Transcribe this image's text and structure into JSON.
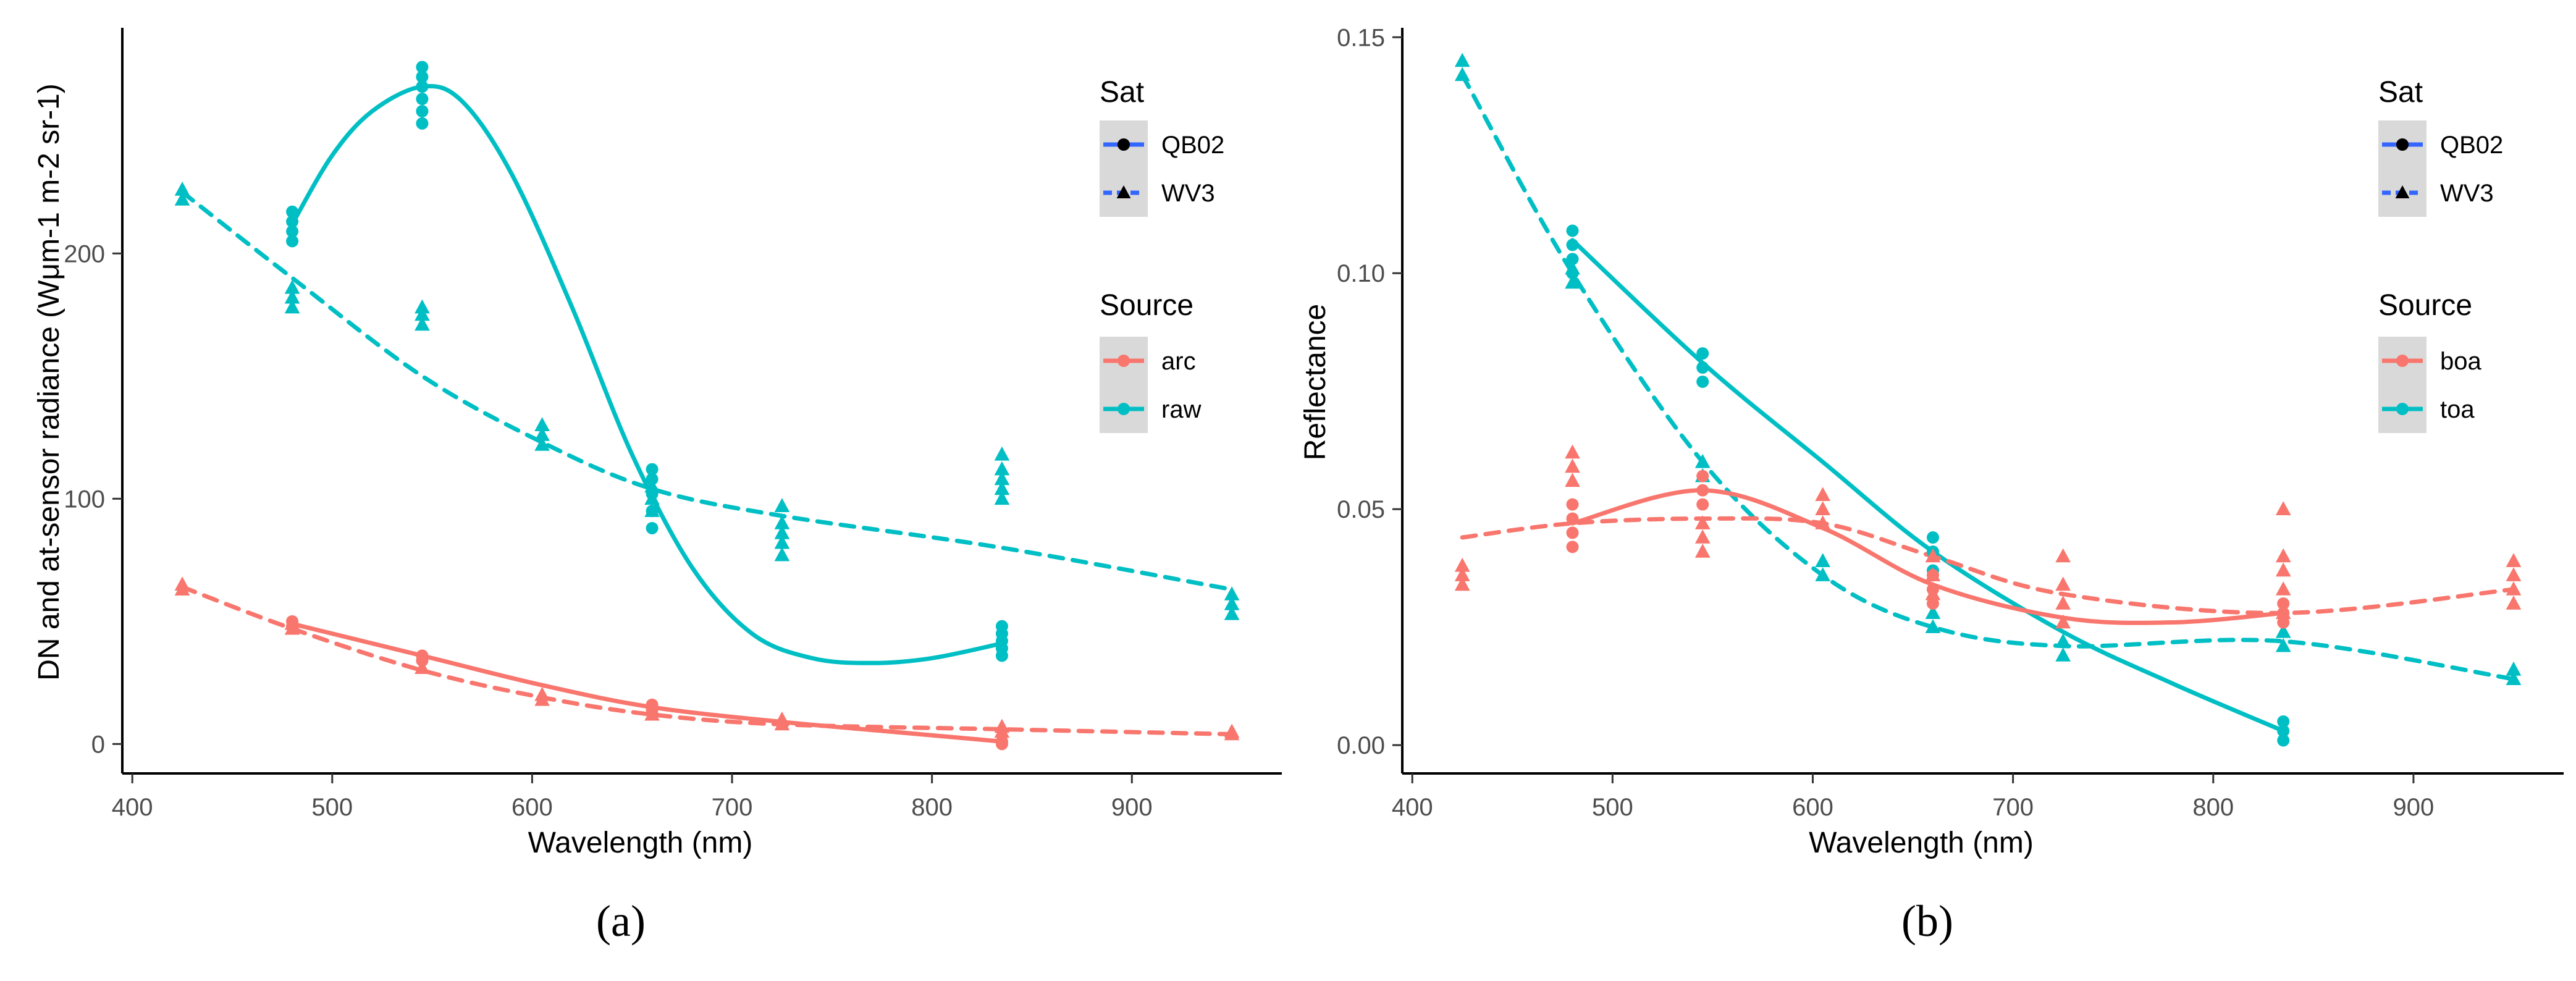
{
  "chart_data": [
    {
      "panel": "a",
      "caption": "(a)",
      "type": "scatter",
      "title": "",
      "xlabel": "Wavelength (nm)",
      "ylabel": "DN and at-sensor radiance (Wμm-1 m-2 sr-1)",
      "xlim": [
        395,
        975
      ],
      "ylim": [
        -12,
        292
      ],
      "xticks": [
        400,
        500,
        600,
        700,
        800,
        900
      ],
      "yticks": [
        0,
        100,
        200
      ],
      "grid": false,
      "legend_position": "right",
      "legend": {
        "sat_title": "Sat",
        "sat_entries": [
          "QB02",
          "WV3"
        ],
        "source_title": "Source",
        "source_entries": [
          "arc",
          "raw"
        ]
      },
      "colors": {
        "arc": "#F8766D",
        "raw": "#00BFC4",
        "legend_line": "#3366FF"
      },
      "points": [
        {
          "sat": "QB02",
          "source": "raw",
          "x": 480,
          "y": [
            205,
            209,
            213,
            217
          ]
        },
        {
          "sat": "QB02",
          "source": "raw",
          "x": 545,
          "y": [
            253,
            258,
            263,
            268,
            272,
            276
          ]
        },
        {
          "sat": "QB02",
          "source": "raw",
          "x": 660,
          "y": [
            88,
            95,
            102,
            108,
            112
          ]
        },
        {
          "sat": "QB02",
          "source": "raw",
          "x": 835,
          "y": [
            36,
            39,
            42,
            45,
            48
          ]
        },
        {
          "sat": "WV3",
          "source": "raw",
          "x": 425,
          "y": [
            222,
            226
          ]
        },
        {
          "sat": "WV3",
          "source": "raw",
          "x": 480,
          "y": [
            178,
            182,
            186
          ]
        },
        {
          "sat": "WV3",
          "source": "raw",
          "x": 545,
          "y": [
            171,
            175,
            178
          ]
        },
        {
          "sat": "WV3",
          "source": "raw",
          "x": 605,
          "y": [
            122,
            126,
            130
          ]
        },
        {
          "sat": "WV3",
          "source": "raw",
          "x": 660,
          "y": [
            95,
            100,
            105
          ]
        },
        {
          "sat": "WV3",
          "source": "raw",
          "x": 725,
          "y": [
            77,
            82,
            86,
            90,
            97
          ]
        },
        {
          "sat": "WV3",
          "source": "raw",
          "x": 835,
          "y": [
            100,
            104,
            108,
            112,
            118
          ]
        },
        {
          "sat": "WV3",
          "source": "raw",
          "x": 950,
          "y": [
            53,
            57,
            61
          ]
        },
        {
          "sat": "QB02",
          "source": "arc",
          "x": 480,
          "y": [
            48,
            50
          ]
        },
        {
          "sat": "QB02",
          "source": "arc",
          "x": 545,
          "y": [
            34,
            36
          ]
        },
        {
          "sat": "QB02",
          "source": "arc",
          "x": 660,
          "y": [
            14,
            16
          ]
        },
        {
          "sat": "QB02",
          "source": "arc",
          "x": 835,
          "y": [
            0,
            1
          ]
        },
        {
          "sat": "WV3",
          "source": "arc",
          "x": 425,
          "y": [
            63,
            65
          ]
        },
        {
          "sat": "WV3",
          "source": "arc",
          "x": 480,
          "y": [
            47,
            49
          ]
        },
        {
          "sat": "WV3",
          "source": "arc",
          "x": 545,
          "y": [
            31
          ]
        },
        {
          "sat": "WV3",
          "source": "arc",
          "x": 605,
          "y": [
            18,
            20
          ]
        },
        {
          "sat": "WV3",
          "source": "arc",
          "x": 660,
          "y": [
            12,
            14
          ]
        },
        {
          "sat": "WV3",
          "source": "arc",
          "x": 725,
          "y": [
            8,
            10
          ]
        },
        {
          "sat": "WV3",
          "source": "arc",
          "x": 835,
          "y": [
            5,
            7
          ]
        },
        {
          "sat": "WV3",
          "source": "arc",
          "x": 950,
          "y": [
            4,
            5
          ]
        }
      ],
      "smooth_lines": [
        {
          "sat": "QB02",
          "source": "raw",
          "dashed": false,
          "x": [
            480,
            500,
            520,
            545,
            565,
            590,
            620,
            650,
            680,
            710,
            740,
            770,
            800,
            835
          ],
          "y": [
            212,
            240,
            258,
            268,
            262,
            232,
            178,
            118,
            72,
            45,
            35,
            33,
            35,
            41
          ]
        },
        {
          "sat": "WV3",
          "source": "raw",
          "dashed": true,
          "x": [
            425,
            480,
            545,
            605,
            660,
            725,
            835,
            950
          ],
          "y": [
            225,
            190,
            150,
            123,
            104,
            93,
            80,
            63
          ]
        },
        {
          "sat": "QB02",
          "source": "arc",
          "dashed": false,
          "x": [
            480,
            545,
            605,
            660,
            725,
            780,
            835
          ],
          "y": [
            49,
            36,
            24,
            15,
            9,
            5,
            1
          ]
        },
        {
          "sat": "WV3",
          "source": "arc",
          "dashed": true,
          "x": [
            425,
            480,
            545,
            605,
            660,
            725,
            835,
            950
          ],
          "y": [
            64,
            47,
            30,
            19,
            12,
            8,
            6,
            4
          ]
        }
      ]
    },
    {
      "panel": "b",
      "caption": "(b)",
      "type": "scatter",
      "title": "",
      "xlabel": "Wavelength (nm)",
      "ylabel": "Reflectance",
      "xlim": [
        395,
        975
      ],
      "ylim": [
        -0.006,
        0.152
      ],
      "xticks": [
        400,
        500,
        600,
        700,
        800,
        900
      ],
      "yticks": [
        0.0,
        0.05,
        0.1,
        0.15
      ],
      "ytick_labels": [
        "0.00",
        "0.05",
        "0.10",
        "0.15"
      ],
      "grid": false,
      "legend_position": "right",
      "legend": {
        "sat_title": "Sat",
        "sat_entries": [
          "QB02",
          "WV3"
        ],
        "source_title": "Source",
        "source_entries": [
          "boa",
          "toa"
        ]
      },
      "colors": {
        "boa": "#F8766D",
        "toa": "#00BFC4",
        "legend_line": "#3366FF"
      },
      "points": [
        {
          "sat": "QB02",
          "source": "toa",
          "x": 480,
          "y": [
            0.1,
            0.103,
            0.106,
            0.109
          ]
        },
        {
          "sat": "QB02",
          "source": "toa",
          "x": 545,
          "y": [
            0.077,
            0.08,
            0.083
          ]
        },
        {
          "sat": "QB02",
          "source": "toa",
          "x": 660,
          "y": [
            0.037,
            0.041,
            0.044
          ]
        },
        {
          "sat": "QB02",
          "source": "toa",
          "x": 835,
          "y": [
            0.001,
            0.003,
            0.005
          ]
        },
        {
          "sat": "WV3",
          "source": "toa",
          "x": 425,
          "y": [
            0.142,
            0.145
          ]
        },
        {
          "sat": "WV3",
          "source": "toa",
          "x": 480,
          "y": [
            0.098,
            0.101
          ]
        },
        {
          "sat": "WV3",
          "source": "toa",
          "x": 545,
          "y": [
            0.057,
            0.06
          ]
        },
        {
          "sat": "WV3",
          "source": "toa",
          "x": 605,
          "y": [
            0.036,
            0.039
          ]
        },
        {
          "sat": "WV3",
          "source": "toa",
          "x": 660,
          "y": [
            0.025,
            0.028
          ]
        },
        {
          "sat": "WV3",
          "source": "toa",
          "x": 725,
          "y": [
            0.019,
            0.022
          ]
        },
        {
          "sat": "WV3",
          "source": "toa",
          "x": 835,
          "y": [
            0.021,
            0.024
          ]
        },
        {
          "sat": "WV3",
          "source": "toa",
          "x": 950,
          "y": [
            0.014,
            0.016
          ]
        },
        {
          "sat": "QB02",
          "source": "boa",
          "x": 480,
          "y": [
            0.042,
            0.045,
            0.048,
            0.051
          ]
        },
        {
          "sat": "QB02",
          "source": "boa",
          "x": 545,
          "y": [
            0.051,
            0.054,
            0.057
          ]
        },
        {
          "sat": "QB02",
          "source": "boa",
          "x": 660,
          "y": [
            0.03,
            0.033,
            0.036
          ]
        },
        {
          "sat": "QB02",
          "source": "boa",
          "x": 835,
          "y": [
            0.026,
            0.028,
            0.03
          ]
        },
        {
          "sat": "WV3",
          "source": "boa",
          "x": 425,
          "y": [
            0.034,
            0.036,
            0.038
          ]
        },
        {
          "sat": "WV3",
          "source": "boa",
          "x": 480,
          "y": [
            0.056,
            0.059,
            0.062
          ]
        },
        {
          "sat": "WV3",
          "source": "boa",
          "x": 545,
          "y": [
            0.041,
            0.044,
            0.047
          ]
        },
        {
          "sat": "WV3",
          "source": "boa",
          "x": 605,
          "y": [
            0.047,
            0.05,
            0.053
          ]
        },
        {
          "sat": "WV3",
          "source": "boa",
          "x": 660,
          "y": [
            0.032,
            0.036,
            0.04
          ]
        },
        {
          "sat": "WV3",
          "source": "boa",
          "x": 725,
          "y": [
            0.026,
            0.03,
            0.034,
            0.04
          ]
        },
        {
          "sat": "WV3",
          "source": "boa",
          "x": 835,
          "y": [
            0.028,
            0.033,
            0.037,
            0.04,
            0.05
          ]
        },
        {
          "sat": "WV3",
          "source": "boa",
          "x": 950,
          "y": [
            0.03,
            0.033,
            0.036,
            0.039
          ]
        }
      ],
      "smooth_lines": [
        {
          "sat": "QB02",
          "source": "toa",
          "dashed": false,
          "x": [
            480,
            545,
            605,
            660,
            725,
            780,
            835
          ],
          "y": [
            0.107,
            0.081,
            0.06,
            0.041,
            0.024,
            0.013,
            0.003
          ]
        },
        {
          "sat": "WV3",
          "source": "toa",
          "dashed": true,
          "x": [
            425,
            480,
            545,
            605,
            660,
            725,
            835,
            950
          ],
          "y": [
            0.142,
            0.1,
            0.06,
            0.036,
            0.025,
            0.021,
            0.022,
            0.014
          ]
        },
        {
          "sat": "QB02",
          "source": "boa",
          "dashed": false,
          "x": [
            480,
            545,
            605,
            660,
            725,
            780,
            835
          ],
          "y": [
            0.047,
            0.054,
            0.046,
            0.034,
            0.027,
            0.026,
            0.028
          ]
        },
        {
          "sat": "WV3",
          "source": "boa",
          "dashed": true,
          "x": [
            425,
            480,
            545,
            605,
            660,
            725,
            835,
            950
          ],
          "y": [
            0.044,
            0.047,
            0.048,
            0.047,
            0.04,
            0.032,
            0.028,
            0.033
          ]
        }
      ]
    }
  ]
}
